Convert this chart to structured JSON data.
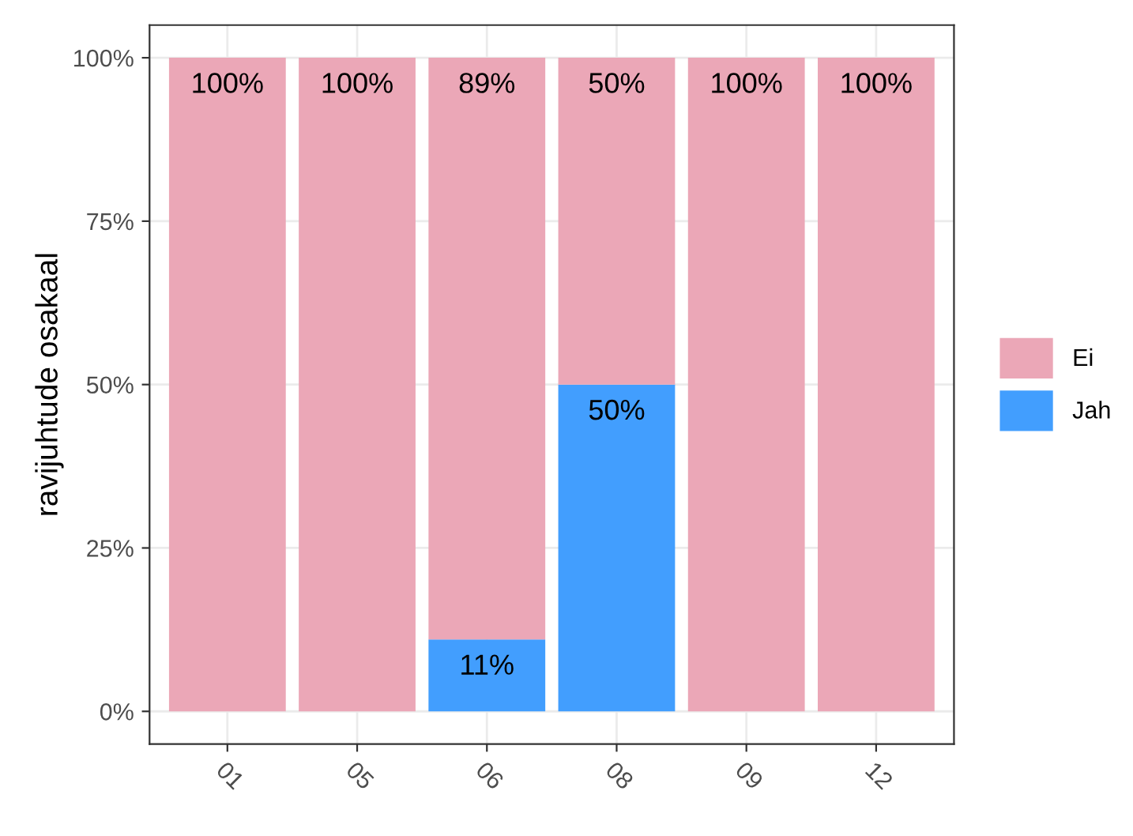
{
  "chart_data": {
    "type": "bar",
    "ylabel": "ravijuhtude osakaal",
    "categories": [
      "01",
      "05",
      "06",
      "08",
      "09",
      "12"
    ],
    "stacked": true,
    "series": [
      {
        "name": "Jah",
        "color": "#429efe",
        "values": [
          0,
          0,
          11,
          50,
          0,
          0
        ],
        "value_labels": [
          null,
          null,
          "11%",
          "50%",
          null,
          null
        ]
      },
      {
        "name": "Ei",
        "color": "#eba7b7",
        "values": [
          100,
          100,
          89,
          50,
          100,
          100
        ],
        "value_labels": [
          "100%",
          "100%",
          "89%",
          "50%",
          "100%",
          "100%"
        ]
      }
    ],
    "ylim": [
      -5,
      105
    ],
    "yticks": [
      {
        "value": 0,
        "label": "0%"
      },
      {
        "value": 25,
        "label": "25%"
      },
      {
        "value": 50,
        "label": "50%"
      },
      {
        "value": 75,
        "label": "75%"
      },
      {
        "value": 100,
        "label": "100%"
      }
    ],
    "grid": true,
    "legend": "right"
  }
}
